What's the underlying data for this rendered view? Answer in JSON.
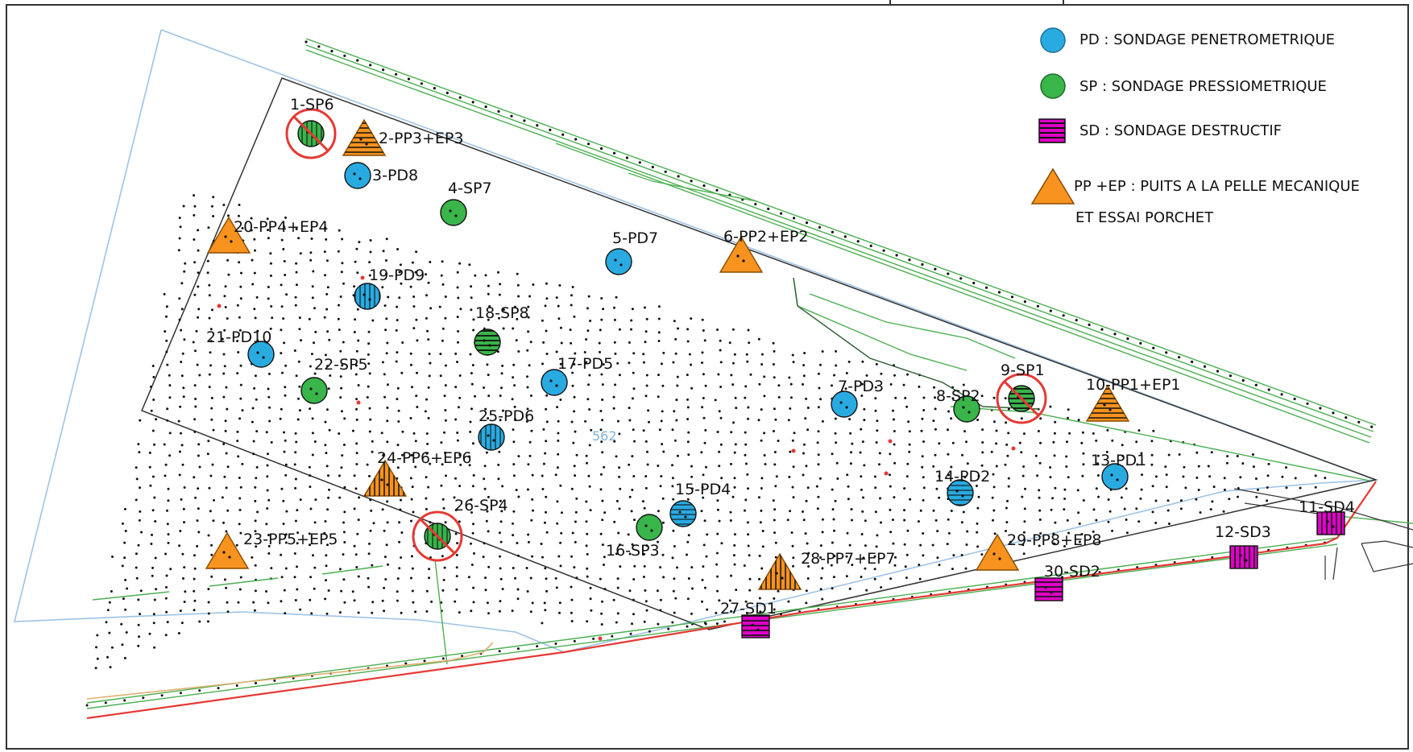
{
  "colors": {
    "pd": "#29abe2",
    "sp": "#39b54a",
    "sd": "#e000c8",
    "pp": "#f7931e",
    "outline_blue": "#9dc3e6",
    "network_green": "#4caf50",
    "road_red": "#e53935",
    "pipe_tan": "#e0b070",
    "cancel_red": "#e53935"
  },
  "legend": {
    "pd": "PD : SONDAGE PENETROMETRIQUE",
    "sp": "SP : SONDAGE PRESSIOMETRIQUE",
    "sd": "SD : SONDAGE DESTRUCTIF",
    "pp_line1": "PP +EP : PUITS A LA PELLE MECANIQUE",
    "pp_line2": "ET ESSAI PORCHET"
  },
  "map": {
    "faint_label": "562",
    "points": [
      {
        "id": "p1",
        "type": "sp",
        "label": "1-SP6",
        "cancelled": true,
        "pattern": "v"
      },
      {
        "id": "p2",
        "type": "pp",
        "label": "2-PP3+EP3",
        "cancelled": false,
        "pattern": "h"
      },
      {
        "id": "p3",
        "type": "pd",
        "label": "3-PD8",
        "cancelled": false,
        "pattern": ""
      },
      {
        "id": "p4",
        "type": "sp",
        "label": "4-SP7",
        "cancelled": false,
        "pattern": ""
      },
      {
        "id": "p5",
        "type": "pd",
        "label": "5-PD7",
        "cancelled": false,
        "pattern": ""
      },
      {
        "id": "p6",
        "type": "pp",
        "label": "6-PP2+EP2",
        "cancelled": false,
        "pattern": ""
      },
      {
        "id": "p7",
        "type": "pd",
        "label": "7-PD3",
        "cancelled": false,
        "pattern": ""
      },
      {
        "id": "p8",
        "type": "sp",
        "label": "8-SP2",
        "cancelled": false,
        "pattern": ""
      },
      {
        "id": "p9",
        "type": "sp",
        "label": "9-SP1",
        "cancelled": true,
        "pattern": "h"
      },
      {
        "id": "p10",
        "type": "pp",
        "label": "10-PP1+EP1",
        "cancelled": false,
        "pattern": "h"
      },
      {
        "id": "p11",
        "type": "sd",
        "label": "11-SD4",
        "cancelled": false,
        "pattern": "v"
      },
      {
        "id": "p12",
        "type": "sd",
        "label": "12-SD3",
        "cancelled": false,
        "pattern": "v"
      },
      {
        "id": "p13",
        "type": "pd",
        "label": "13-PD1",
        "cancelled": false,
        "pattern": ""
      },
      {
        "id": "p14",
        "type": "pd",
        "label": "14-PD2",
        "cancelled": false,
        "pattern": "h"
      },
      {
        "id": "p15",
        "type": "pd",
        "label": "15-PD4",
        "cancelled": false,
        "pattern": "h"
      },
      {
        "id": "p16",
        "type": "sp",
        "label": "16-SP3",
        "cancelled": false,
        "pattern": ""
      },
      {
        "id": "p17",
        "type": "pd",
        "label": "17-PD5",
        "cancelled": false,
        "pattern": ""
      },
      {
        "id": "p18",
        "type": "sp",
        "label": "18-SP8",
        "cancelled": false,
        "pattern": "h"
      },
      {
        "id": "p19",
        "type": "pd",
        "label": "19-PD9",
        "cancelled": false,
        "pattern": "v"
      },
      {
        "id": "p20",
        "type": "pp",
        "label": "20-PP4+EP4",
        "cancelled": false,
        "pattern": ""
      },
      {
        "id": "p21",
        "type": "pd",
        "label": "21-PD10",
        "cancelled": false,
        "pattern": ""
      },
      {
        "id": "p22",
        "type": "sp",
        "label": "22-SP5",
        "cancelled": false,
        "pattern": ""
      },
      {
        "id": "p23",
        "type": "pp",
        "label": "23-PP5+EP5",
        "cancelled": false,
        "pattern": ""
      },
      {
        "id": "p24",
        "type": "pp",
        "label": "24-PP6+EP6",
        "cancelled": false,
        "pattern": "v"
      },
      {
        "id": "p25",
        "type": "pd",
        "label": "25-PD6",
        "cancelled": false,
        "pattern": "v"
      },
      {
        "id": "p26",
        "type": "sp",
        "label": "26-SP4",
        "cancelled": true,
        "pattern": "v"
      },
      {
        "id": "p27",
        "type": "sd",
        "label": "27-SD1",
        "cancelled": false,
        "pattern": "h"
      },
      {
        "id": "p28",
        "type": "pp",
        "label": "28-PP7+EP7",
        "cancelled": false,
        "pattern": "v"
      },
      {
        "id": "p29",
        "type": "pp",
        "label": "29-PP8+EP8",
        "cancelled": false,
        "pattern": ""
      },
      {
        "id": "p30",
        "type": "sd",
        "label": "30-SD2",
        "cancelled": false,
        "pattern": "h"
      }
    ]
  }
}
